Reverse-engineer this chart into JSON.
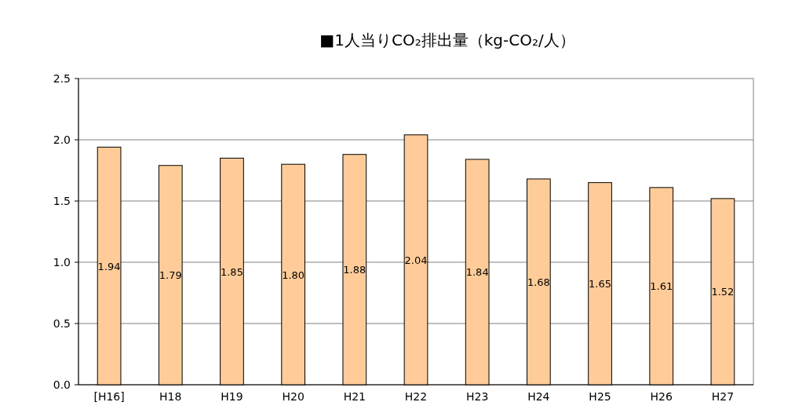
{
  "chart_data": {
    "type": "bar",
    "title": "■1人当りCO₂排出量（kg-CO₂/人）",
    "categories": [
      "[H16]",
      "H18",
      "H19",
      "H20",
      "H21",
      "H22",
      "H23",
      "H24",
      "H25",
      "H26",
      "H27"
    ],
    "values": [
      1.94,
      1.79,
      1.85,
      1.8,
      1.88,
      2.04,
      1.84,
      1.68,
      1.65,
      1.61,
      1.52
    ],
    "value_labels": [
      "1.94",
      "1.79",
      "1.85",
      "1.80",
      "1.88",
      "2.04",
      "1.84",
      "1.68",
      "1.65",
      "1.61",
      "1.52"
    ],
    "color": "#ffcc99",
    "ylim": [
      0,
      2.5
    ],
    "yticks": [
      {
        "value": 0,
        "label": "0.0"
      },
      {
        "value": 0.5,
        "label": "0.5"
      },
      {
        "value": 1,
        "label": "1.0"
      },
      {
        "value": 1.5,
        "label": "1.5"
      },
      {
        "value": 2,
        "label": "2.0"
      },
      {
        "value": 2.5,
        "label": "2.5"
      }
    ],
    "grid": "y"
  }
}
